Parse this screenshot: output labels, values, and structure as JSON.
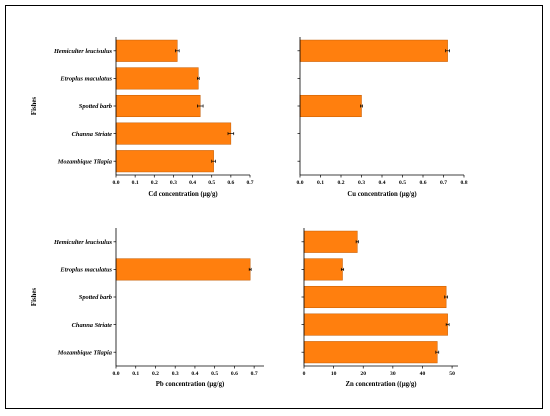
{
  "colors": {
    "bar": "#ff7f0e",
    "bar_edge": "#c25a00",
    "axis": "#000000"
  },
  "chart_data": [
    {
      "type": "bar",
      "orientation": "horizontal",
      "categories": [
        "Hemiculter leucisulus",
        "Etroplus maculatus",
        "Spotted barb",
        "Channa Striate",
        "Mozambique Tilapia"
      ],
      "values": [
        0.32,
        0.43,
        0.44,
        0.6,
        0.51
      ],
      "errors": [
        0.01,
        0.005,
        0.015,
        0.015,
        0.01
      ],
      "xlabel": "Cd concentration (µg/g)",
      "ylabel": "Fishes",
      "xlim": [
        0,
        0.7
      ],
      "xticks": [
        "0.0",
        "0.1",
        "0.2",
        "0.3",
        "0.4",
        "0.5",
        "0.6",
        "0.7"
      ]
    },
    {
      "type": "bar",
      "orientation": "horizontal",
      "categories": [
        "Hemiculter leucisulus",
        "Etroplus maculatus",
        "Spotted barb",
        "Channa Striate",
        "Mozambique Tilapia"
      ],
      "values": [
        0.72,
        0,
        0.3,
        0,
        0
      ],
      "errors": [
        0.01,
        0,
        0.005,
        0,
        0
      ],
      "xlabel": "Cu concentration (µg/g)",
      "ylabel": "",
      "xlim": [
        0,
        0.8
      ],
      "xticks": [
        "0.0",
        "0.1",
        "0.2",
        "0.3",
        "0.4",
        "0.5",
        "0.6",
        "0.7",
        "0.8"
      ]
    },
    {
      "type": "bar",
      "orientation": "horizontal",
      "categories": [
        "Hemiculter leucisulus",
        "Etroplus maculatus",
        "Spotted barb",
        "Channa Striate",
        "Mozambique Tilapia"
      ],
      "values": [
        0,
        0.68,
        0,
        0,
        0
      ],
      "errors": [
        0,
        0.005,
        0,
        0,
        0
      ],
      "xlabel": "Pb concentration (µg/g)",
      "ylabel": "Fishes",
      "xlim": [
        0,
        0.75
      ],
      "xticks": [
        "0.0",
        "0.1",
        "0.2",
        "0.3",
        "0.4",
        "0.5",
        "0.6",
        "0.7"
      ]
    },
    {
      "type": "bar",
      "orientation": "horizontal",
      "categories": [
        "Hemiculter leucisulus",
        "Etroplus maculatus",
        "Spotted barb",
        "Channa Striate",
        "Mozambique Tilapia"
      ],
      "values": [
        18,
        13,
        48,
        48.5,
        45
      ],
      "errors": [
        0.4,
        0.4,
        0.5,
        0.5,
        0.5
      ],
      "xlabel": "Zn concentration ((µg/g)",
      "ylabel": "",
      "xlim": [
        0,
        52
      ],
      "xticks": [
        "0",
        "10",
        "20",
        "30",
        "40",
        "50"
      ]
    }
  ]
}
